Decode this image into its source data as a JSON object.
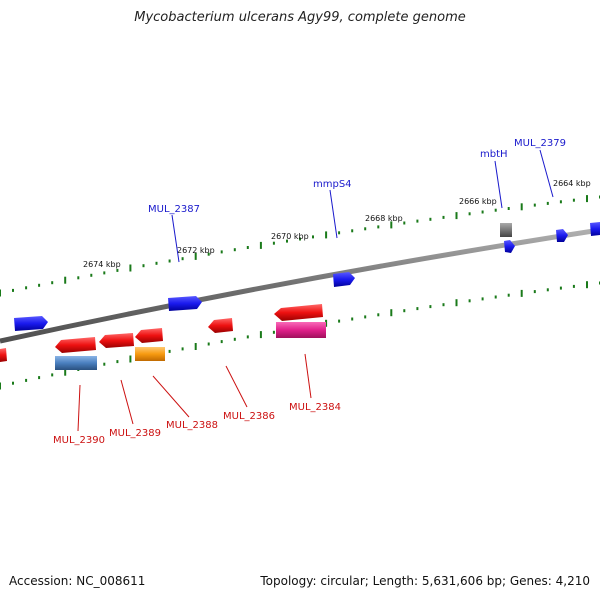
{
  "title": "Mycobacterium ulcerans Agy99, complete genome",
  "footer": {
    "accession": "Accession: NC_008611",
    "summary": "Topology: circular; Length: 5,631,606 bp; Genes: 4,210"
  },
  "colors": {
    "backbone": "#7a7a7a",
    "tick": "#1a7a1a",
    "forward_label": "#1a1acc",
    "reverse_label": "#cc1111",
    "forward_gene": "#1a1aee",
    "reverse_gene": "#ee1111",
    "gray_feature": "#777777",
    "magenta_feature": "#e0208a",
    "orange_feature": "#f79a10",
    "steelblue_feature": "#4a7fbf"
  },
  "scale_labels": [
    "2674 kbp",
    "2672 kbp",
    "2670 kbp",
    "2668 kbp",
    "2666 kbp",
    "2664 kbp"
  ],
  "forward_labels": [
    {
      "name": "MUL_2387"
    },
    {
      "name": "mmpS4"
    },
    {
      "name": "mbtH"
    },
    {
      "name": "MUL_2379"
    }
  ],
  "reverse_labels": [
    {
      "name": "MUL_2390"
    },
    {
      "name": "MUL_2389"
    },
    {
      "name": "MUL_2388"
    },
    {
      "name": "MUL_2386"
    },
    {
      "name": "MUL_2384"
    }
  ]
}
